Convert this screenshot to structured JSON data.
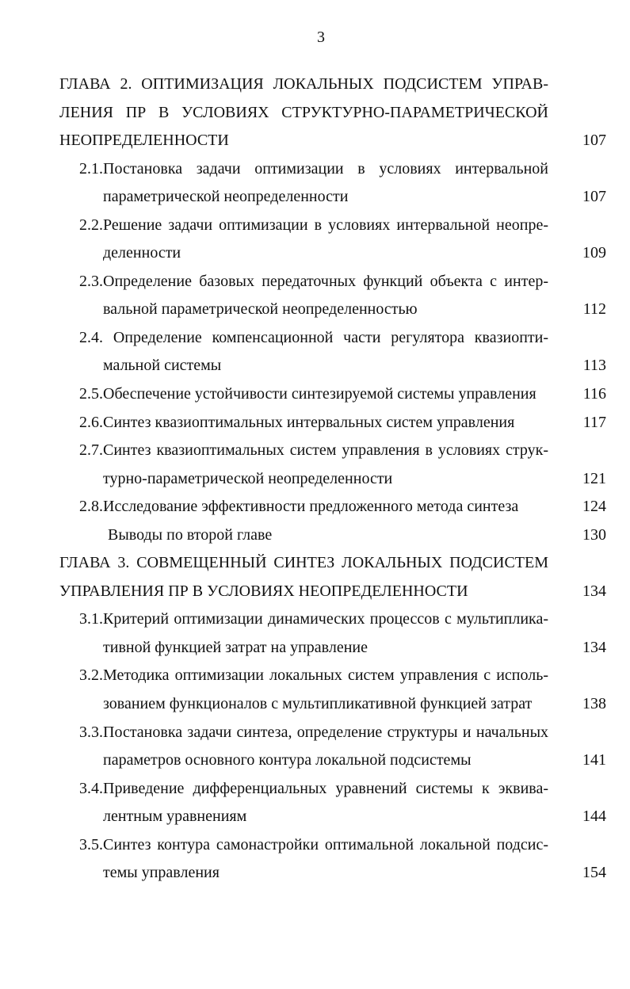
{
  "page_number": "3",
  "entries": [
    {
      "level": "chapter",
      "lines": [
        "ГЛАВА 2. ОПТИМИЗАЦИЯ ЛОКАЛЬНЫХ ПОДСИСТЕМ УПРАВ-",
        "ЛЕНИЯ ПР В УСЛОВИЯХ СТРУКТУРНО-ПАРАМЕТРИЧЕСКОЙ",
        "НЕОПРЕДЕЛЕННОСТИ"
      ],
      "page": "107"
    },
    {
      "level": "section",
      "lines": [
        "2.1.Постановка задачи оптимизации в условиях интервальной",
        "параметрической неопределенности"
      ],
      "page": "107"
    },
    {
      "level": "section",
      "lines": [
        "2.2.Решение задачи оптимизации в условиях интервальной неопре-",
        "деленности"
      ],
      "page": "109"
    },
    {
      "level": "section",
      "lines": [
        "2.3.Определение базовых передаточных функций объекта с интер-",
        "вальной параметрической неопределенностью"
      ],
      "page": "112"
    },
    {
      "level": "section",
      "lines": [
        "2.4. Определение компенсационной части регулятора квазиопти-",
        "мальной системы"
      ],
      "page": "113"
    },
    {
      "level": "section",
      "lines": [
        "2.5.Обеспечение устойчивости синтезируемой системы управления"
      ],
      "page": "116"
    },
    {
      "level": "section",
      "lines": [
        "2.6.Синтез квазиоптимальных интервальных систем управления"
      ],
      "page": "117"
    },
    {
      "level": "section",
      "lines": [
        "2.7.Синтез квазиоптимальных систем управления в условиях струк-",
        "турно-параметрической неопределенности"
      ],
      "page": "121"
    },
    {
      "level": "section",
      "lines": [
        "2.8.Исследование эффективности предложенного метода синтеза"
      ],
      "page": "124"
    },
    {
      "level": "conclusion",
      "lines": [
        "Выводы по второй главе"
      ],
      "page": "130"
    },
    {
      "level": "chapter",
      "lines": [
        "ГЛАВА 3. СОВМЕЩЕННЫЙ СИНТЕЗ ЛОКАЛЬНЫХ ПОДСИСТЕМ",
        "УПРАВЛЕНИЯ ПР В УСЛОВИЯХ НЕОПРЕДЕЛЕННОСТИ"
      ],
      "page": "134"
    },
    {
      "level": "section",
      "lines": [
        "3.1.Критерий оптимизации динамических процессов с мультиплика-",
        "тивной функцией затрат на управление"
      ],
      "page": "134"
    },
    {
      "level": "section",
      "lines": [
        "3.2.Методика оптимизации локальных систем управления с исполь-",
        "зованием функционалов с мультипликативной функцией затрат"
      ],
      "page": "138"
    },
    {
      "level": "section",
      "lines": [
        "3.3.Постановка задачи синтеза, определение структуры и начальных",
        "параметров основного контура локальной подсистемы"
      ],
      "page": "141"
    },
    {
      "level": "section",
      "lines": [
        "3.4.Приведение дифференциальных уравнений системы к эквива-",
        "лентным уравнениям"
      ],
      "page": "144"
    },
    {
      "level": "section",
      "lines": [
        "3.5.Синтез контура самонастройки оптимальной локальной подсис-",
        "темы управления"
      ],
      "page": "154"
    }
  ]
}
